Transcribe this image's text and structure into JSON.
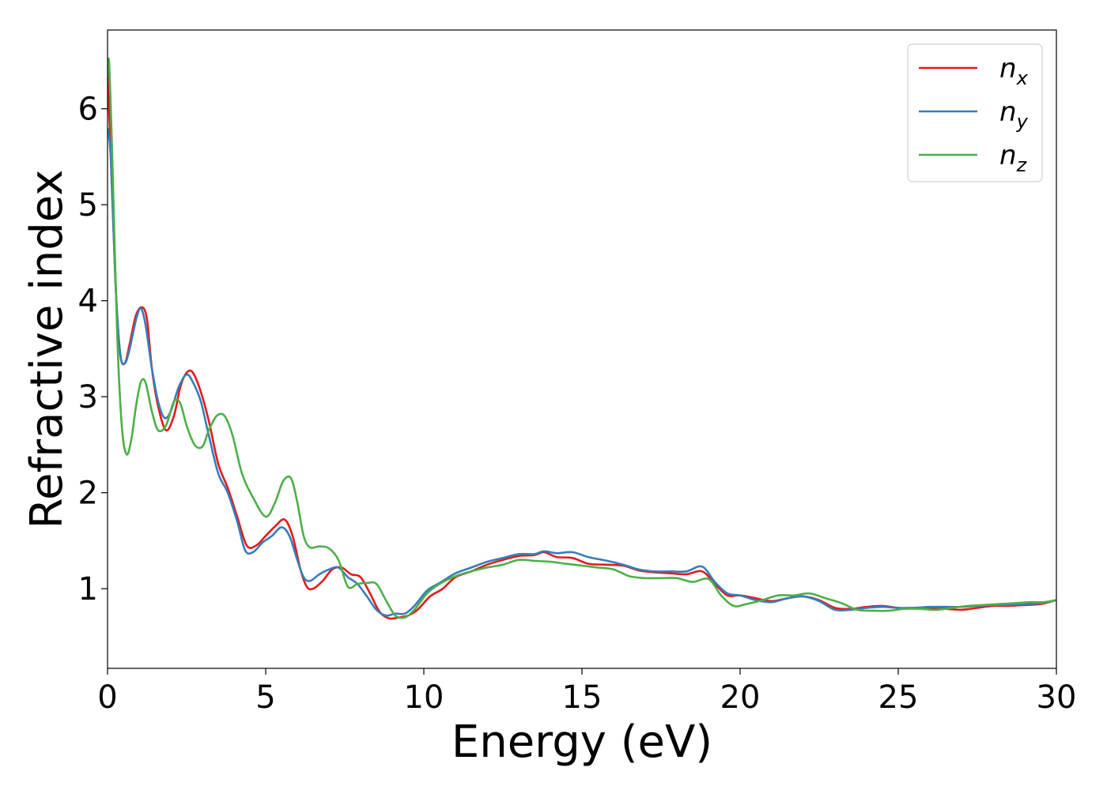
{
  "chart_data": {
    "type": "line",
    "xlabel": "Energy (eV)",
    "ylabel": "Refractive index",
    "xlim": [
      0,
      30
    ],
    "ylim": [
      0.17,
      6.82
    ],
    "xticks": [
      0,
      5,
      10,
      15,
      20,
      25,
      30
    ],
    "yticks": [
      1,
      2,
      3,
      4,
      5,
      6
    ],
    "grid": false,
    "legend_position": "top-right",
    "series": [
      {
        "name": "n_x",
        "label_base": "n",
        "label_sub": "x",
        "color": "#e41a1c",
        "x": [
          0,
          0.1,
          0.25,
          0.4,
          0.55,
          0.7,
          0.9,
          1.1,
          1.25,
          1.4,
          1.6,
          1.85,
          2.1,
          2.3,
          2.5,
          2.7,
          2.95,
          3.2,
          3.5,
          3.8,
          4.1,
          4.4,
          4.7,
          5.0,
          5.3,
          5.6,
          5.85,
          6.1,
          6.3,
          6.5,
          6.8,
          7.1,
          7.4,
          7.7,
          8.0,
          8.3,
          8.6,
          8.9,
          9.2,
          9.5,
          9.8,
          10.2,
          10.6,
          11.0,
          11.5,
          12.0,
          12.5,
          13.0,
          13.5,
          13.8,
          14.2,
          14.7,
          15.2,
          15.8,
          16.3,
          16.8,
          17.3,
          17.8,
          18.3,
          18.8,
          19.2,
          19.6,
          20.0,
          20.5,
          21.0,
          21.5,
          22.0,
          22.5,
          23.0,
          23.5,
          24.0,
          24.5,
          25.0,
          25.5,
          26.0,
          26.5,
          27.0,
          27.5,
          28.0,
          28.5,
          29.0,
          29.5,
          30.0
        ],
        "y": [
          6.35,
          5.6,
          4.2,
          3.45,
          3.35,
          3.55,
          3.85,
          3.93,
          3.8,
          3.3,
          2.9,
          2.65,
          2.8,
          3.1,
          3.25,
          3.25,
          3.05,
          2.75,
          2.3,
          2.05,
          1.75,
          1.45,
          1.45,
          1.55,
          1.65,
          1.72,
          1.55,
          1.2,
          1.02,
          1.0,
          1.08,
          1.2,
          1.22,
          1.15,
          1.12,
          0.95,
          0.76,
          0.69,
          0.7,
          0.72,
          0.78,
          0.92,
          1.0,
          1.12,
          1.18,
          1.25,
          1.3,
          1.34,
          1.35,
          1.38,
          1.33,
          1.32,
          1.26,
          1.25,
          1.24,
          1.19,
          1.17,
          1.16,
          1.15,
          1.18,
          1.05,
          0.93,
          0.93,
          0.9,
          0.87,
          0.9,
          0.92,
          0.88,
          0.8,
          0.79,
          0.81,
          0.82,
          0.8,
          0.8,
          0.8,
          0.79,
          0.78,
          0.8,
          0.82,
          0.82,
          0.83,
          0.84,
          0.88
        ]
      },
      {
        "name": "n_y",
        "label_base": "n",
        "label_sub": "y",
        "color": "#377eb8",
        "x": [
          0,
          0.1,
          0.25,
          0.4,
          0.55,
          0.7,
          0.9,
          1.05,
          1.2,
          1.4,
          1.6,
          1.8,
          2.0,
          2.25,
          2.5,
          2.7,
          2.95,
          3.2,
          3.5,
          3.8,
          4.1,
          4.35,
          4.6,
          4.9,
          5.2,
          5.5,
          5.75,
          6.0,
          6.2,
          6.4,
          6.7,
          7.0,
          7.3,
          7.6,
          7.9,
          8.2,
          8.5,
          8.8,
          9.1,
          9.4,
          9.7,
          10.1,
          10.5,
          11.0,
          11.5,
          12.0,
          12.5,
          13.0,
          13.5,
          13.8,
          14.2,
          14.7,
          15.2,
          15.8,
          16.3,
          16.8,
          17.3,
          17.8,
          18.3,
          18.8,
          19.2,
          19.6,
          20.0,
          20.5,
          21.0,
          21.5,
          22.0,
          22.5,
          23.0,
          23.5,
          24.0,
          24.5,
          25.0,
          25.5,
          26.0,
          26.5,
          27.0,
          27.5,
          28.0,
          28.5,
          29.0,
          29.5,
          30.0
        ],
        "y": [
          5.8,
          5.5,
          4.2,
          3.45,
          3.35,
          3.5,
          3.8,
          3.92,
          3.75,
          3.3,
          2.95,
          2.78,
          2.85,
          3.1,
          3.23,
          3.15,
          2.95,
          2.6,
          2.2,
          2.0,
          1.7,
          1.4,
          1.38,
          1.48,
          1.55,
          1.64,
          1.55,
          1.3,
          1.12,
          1.08,
          1.15,
          1.2,
          1.22,
          1.12,
          1.05,
          0.92,
          0.78,
          0.72,
          0.74,
          0.74,
          0.82,
          0.98,
          1.06,
          1.16,
          1.22,
          1.28,
          1.32,
          1.36,
          1.36,
          1.39,
          1.37,
          1.38,
          1.33,
          1.29,
          1.25,
          1.2,
          1.18,
          1.18,
          1.18,
          1.23,
          1.07,
          0.95,
          0.93,
          0.88,
          0.86,
          0.9,
          0.92,
          0.87,
          0.78,
          0.78,
          0.8,
          0.81,
          0.8,
          0.8,
          0.81,
          0.81,
          0.81,
          0.82,
          0.83,
          0.83,
          0.84,
          0.85,
          0.88
        ]
      },
      {
        "name": "n_z",
        "label_base": "n",
        "label_sub": "z",
        "color": "#4daf4a",
        "x": [
          0,
          0.05,
          0.15,
          0.3,
          0.45,
          0.6,
          0.75,
          0.9,
          1.05,
          1.2,
          1.4,
          1.6,
          1.85,
          2.1,
          2.3,
          2.5,
          2.75,
          3.0,
          3.2,
          3.45,
          3.7,
          3.95,
          4.25,
          4.6,
          5.0,
          5.3,
          5.55,
          5.8,
          6.0,
          6.2,
          6.4,
          6.7,
          7.0,
          7.3,
          7.6,
          7.9,
          8.2,
          8.5,
          8.8,
          9.1,
          9.4,
          9.7,
          10.1,
          10.5,
          11.0,
          11.5,
          12.0,
          12.5,
          13.0,
          13.5,
          14.0,
          14.5,
          15.0,
          15.5,
          16.0,
          16.5,
          17.0,
          17.5,
          18.0,
          18.5,
          19.0,
          19.4,
          19.8,
          20.2,
          20.7,
          21.2,
          21.7,
          22.2,
          22.7,
          23.2,
          23.7,
          24.2,
          24.7,
          25.2,
          25.7,
          26.2,
          26.7,
          27.2,
          27.7,
          28.2,
          28.7,
          29.2,
          29.6,
          30.0
        ],
        "y": [
          6.35,
          6.48,
          5.5,
          3.7,
          2.7,
          2.4,
          2.55,
          2.9,
          3.15,
          3.15,
          2.85,
          2.65,
          2.7,
          2.95,
          2.93,
          2.7,
          2.5,
          2.48,
          2.65,
          2.8,
          2.8,
          2.6,
          2.2,
          1.95,
          1.75,
          1.9,
          2.12,
          2.15,
          1.9,
          1.55,
          1.43,
          1.44,
          1.42,
          1.3,
          1.02,
          1.05,
          1.06,
          1.05,
          0.88,
          0.72,
          0.7,
          0.78,
          0.95,
          1.05,
          1.13,
          1.18,
          1.22,
          1.25,
          1.3,
          1.29,
          1.28,
          1.26,
          1.24,
          1.22,
          1.2,
          1.13,
          1.11,
          1.11,
          1.11,
          1.07,
          1.1,
          0.93,
          0.82,
          0.84,
          0.88,
          0.93,
          0.93,
          0.95,
          0.9,
          0.85,
          0.78,
          0.77,
          0.77,
          0.79,
          0.79,
          0.78,
          0.8,
          0.82,
          0.83,
          0.84,
          0.85,
          0.86,
          0.86,
          0.88
        ]
      }
    ]
  }
}
